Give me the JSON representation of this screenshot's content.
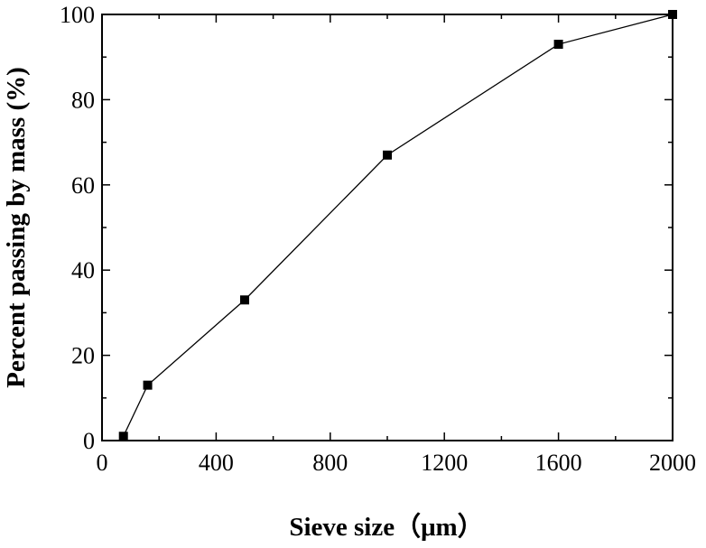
{
  "chart_data": {
    "type": "line",
    "xlabel": "Sieve size（μm）",
    "ylabel": "Percent passing by mass (%)",
    "xlim": [
      0,
      2000
    ],
    "ylim": [
      0,
      100
    ],
    "x_ticks": [
      0,
      400,
      800,
      1200,
      1600,
      2000
    ],
    "x_tick_labels": [
      "0",
      "400",
      "800",
      "1200",
      "1600",
      "2000"
    ],
    "y_ticks": [
      0,
      20,
      40,
      60,
      80,
      100
    ],
    "y_tick_labels": [
      "0",
      "20",
      "40",
      "60",
      "80",
      "100"
    ],
    "grid": false,
    "series": [
      {
        "marker": "square",
        "color": "#000000",
        "points": [
          {
            "x": 75,
            "y": 1
          },
          {
            "x": 160,
            "y": 13
          },
          {
            "x": 500,
            "y": 33
          },
          {
            "x": 1000,
            "y": 67
          },
          {
            "x": 1600,
            "y": 93
          },
          {
            "x": 2000,
            "y": 100
          }
        ]
      }
    ]
  }
}
